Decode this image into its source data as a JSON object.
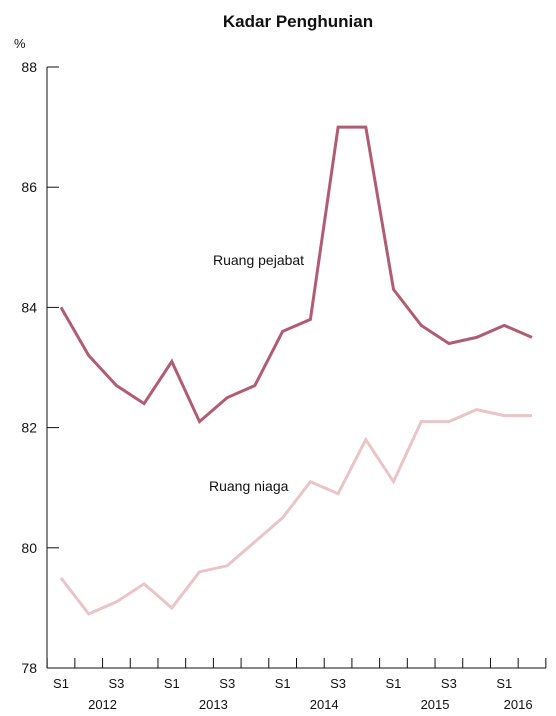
{
  "chart_data": {
    "type": "line",
    "title": "Kadar Penghunian",
    "ylabel": "%",
    "ylim": [
      78,
      88
    ],
    "yticks": [
      78,
      80,
      82,
      84,
      86,
      88
    ],
    "x": [
      "2012 S1",
      "2012 S2",
      "2012 S3",
      "2012 S4",
      "2013 S1",
      "2013 S2",
      "2013 S3",
      "2013 S4",
      "2014 S1",
      "2014 S2",
      "2014 S3",
      "2014 S4",
      "2015 S1",
      "2015 S2",
      "2015 S3",
      "2015 S4",
      "2016 S1",
      "2016 S2"
    ],
    "xtick_labels": [
      "S1",
      "S3",
      "S1",
      "S3",
      "S1",
      "S3",
      "S1",
      "S3",
      "S1"
    ],
    "year_labels": [
      "2012",
      "2013",
      "2014",
      "2015",
      "2016"
    ],
    "series": [
      {
        "name": "Ruang pejabat",
        "color": "#b05c72",
        "values": [
          84.0,
          83.2,
          82.7,
          82.4,
          83.1,
          82.1,
          82.5,
          82.7,
          83.6,
          83.8,
          87.0,
          87.0,
          84.3,
          83.7,
          83.4,
          83.5,
          83.7,
          83.5
        ]
      },
      {
        "name": "Ruang niaga",
        "color": "#e9c4c9",
        "values": [
          79.5,
          78.9,
          79.1,
          79.4,
          79.0,
          79.6,
          79.7,
          80.1,
          80.5,
          81.1,
          80.9,
          81.8,
          81.1,
          82.1,
          82.1,
          82.3,
          82.2,
          82.2
        ]
      }
    ]
  }
}
